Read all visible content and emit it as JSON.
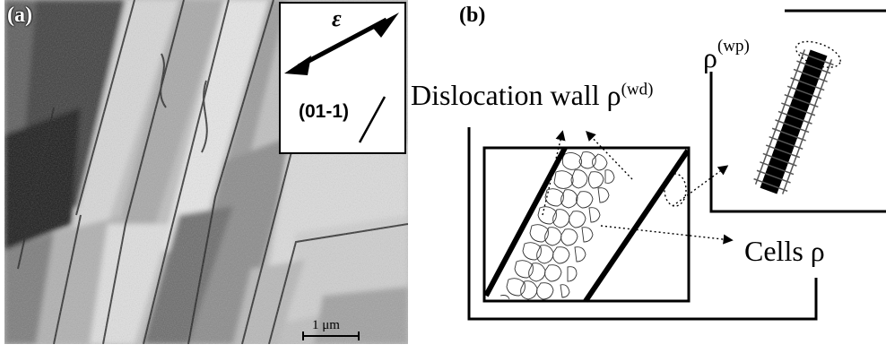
{
  "panel_a": {
    "label": "(a)",
    "strain_symbol": "ε",
    "plane_label": "(01-1)",
    "scale_bar_label": "1 μm"
  },
  "panel_b": {
    "label": "(b)",
    "wall_label_base": "Dislocation wall ρ",
    "wall_label_sup": "(wd)",
    "wp_label_base": "ρ",
    "wp_label_sup": "(wp)",
    "cells_label": "Cells ρ"
  }
}
